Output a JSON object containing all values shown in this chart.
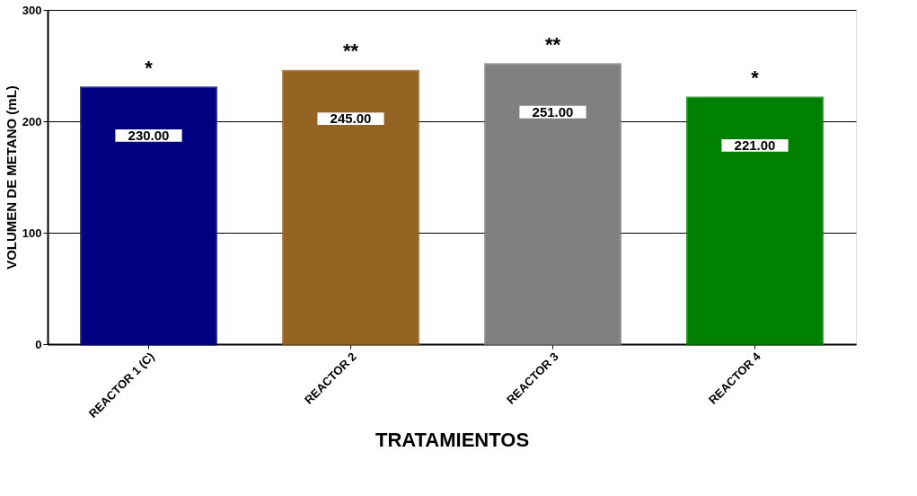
{
  "chart_data": {
    "type": "bar",
    "xlabel": "TRATAMIENTOS",
    "ylabel": "VOLUMEN DE METANO (mL)",
    "categories": [
      "REACTOR 1 (C)",
      "REACTOR 2",
      "REACTOR 3",
      "REACTOR 4"
    ],
    "values": [
      230,
      245,
      251,
      221
    ],
    "colors": [
      "#000080",
      "#956321",
      "#808080",
      "#008000"
    ],
    "value_labels": [
      "230.00",
      "245.00",
      "251.00",
      "221.00"
    ],
    "annotations": [
      "*",
      "**",
      "**",
      "*"
    ],
    "ylim": [
      0,
      300
    ],
    "yticks": [
      0,
      100,
      200,
      300
    ],
    "grid": "y"
  }
}
